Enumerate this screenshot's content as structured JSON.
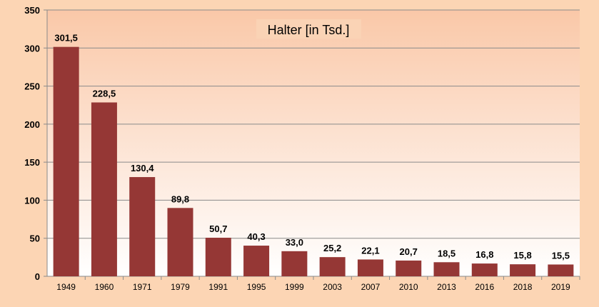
{
  "chart_data": {
    "type": "bar",
    "title": "Halter [in Tsd.]",
    "categories": [
      "1949",
      "1960",
      "1971",
      "1979",
      "1991",
      "1995",
      "1999",
      "2003",
      "2007",
      "2010",
      "2013",
      "2016",
      "2018",
      "2019"
    ],
    "values": [
      301.5,
      228.5,
      130.4,
      89.8,
      50.7,
      40.3,
      33.0,
      25.2,
      22.1,
      20.7,
      18.5,
      16.8,
      15.8,
      15.5
    ],
    "data_labels": [
      "301,5",
      "228,5",
      "130,4",
      "89,8",
      "50,7",
      "40,3",
      "33,0",
      "25,2",
      "22,1",
      "20,7",
      "18,5",
      "16,8",
      "15,8",
      "15,5"
    ],
    "xlabel": "",
    "ylabel": "",
    "ylim": [
      0,
      350
    ],
    "yticks": [
      0,
      50,
      100,
      150,
      200,
      250,
      300,
      350
    ],
    "grid": true,
    "colors": {
      "bar": "#953735",
      "background": "#FCD5B4",
      "plot_top": "#FAC8A8",
      "plot_bottom": "#FFFFFF"
    }
  }
}
